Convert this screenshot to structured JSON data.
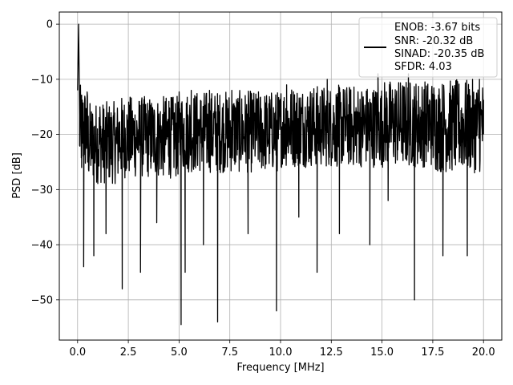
{
  "chart_data": {
    "type": "line",
    "title": "",
    "xlabel": "Frequency [MHz]",
    "ylabel": "PSD [dB]",
    "xlim": [
      -0.9,
      20.9
    ],
    "ylim": [
      -57.3,
      2.2
    ],
    "xticks": [
      0.0,
      2.5,
      5.0,
      7.5,
      10.0,
      12.5,
      15.0,
      17.5,
      20.0
    ],
    "xtick_labels": [
      "0.0",
      "2.5",
      "5.0",
      "7.5",
      "10.0",
      "12.5",
      "15.0",
      "17.5",
      "20.0"
    ],
    "yticks": [
      0,
      -10,
      -20,
      -30,
      -40,
      -50
    ],
    "ytick_labels": [
      "0",
      "−10",
      "−20",
      "−30",
      "−40",
      "−50"
    ],
    "grid": true,
    "legend_position": "top-right",
    "legend": [
      "ENOB: -3.67 bits",
      "SNR: -20.32 dB",
      "SINAD: -20.35 dB",
      "SFDR: 4.03"
    ],
    "series": [
      {
        "color": "#000000",
        "x": [
          0.0,
          0.05,
          0.1,
          0.2,
          0.3,
          0.5,
          0.8,
          1.1,
          1.4,
          2.2,
          2.6,
          3.1,
          3.6,
          3.9,
          4.5,
          5.1,
          5.3,
          5.6,
          6.2,
          6.5,
          6.9,
          7.6,
          8.4,
          9.0,
          9.8,
          10.3,
          10.9,
          11.2,
          11.8,
          12.3,
          12.9,
          13.7,
          14.4,
          14.8,
          15.3,
          16.3,
          16.6,
          17.5,
          18.0,
          18.6,
          19.2,
          19.8,
          20.0
        ],
        "y": [
          -12,
          0,
          -22,
          -26,
          -44,
          -25,
          -42,
          -15,
          -38,
          -48,
          -20,
          -45,
          -20,
          -36,
          -14,
          -54.5,
          -45,
          -12,
          -40,
          -12,
          -54,
          -12,
          -38,
          -22,
          -52,
          -11,
          -35,
          -18,
          -45,
          -10,
          -38,
          -22,
          -40,
          -9,
          -32,
          -9,
          -50,
          -20,
          -42,
          -12,
          -42,
          -10,
          -20
        ],
        "noise_band": {
          "segments": [
            {
              "x": [
                0.1,
                0.5
              ],
              "upper": -11,
              "lower": -27
            },
            {
              "x": [
                0.5,
                2.0
              ],
              "upper": -14,
              "lower": -29
            },
            {
              "x": [
                2.0,
                5.0
              ],
              "upper": -13,
              "lower": -28
            },
            {
              "x": [
                5.0,
                7.5
              ],
              "upper": -12,
              "lower": -27
            },
            {
              "x": [
                7.5,
                10.0
              ],
              "upper": -12,
              "lower": -27
            },
            {
              "x": [
                10.0,
                12.5
              ],
              "upper": -11,
              "lower": -26
            },
            {
              "x": [
                12.5,
                15.0
              ],
              "upper": -11,
              "lower": -26
            },
            {
              "x": [
                15.0,
                17.5
              ],
              "upper": -10,
              "lower": -26
            },
            {
              "x": [
                17.5,
                20.0
              ],
              "upper": -10,
              "lower": -27
            }
          ]
        }
      }
    ]
  }
}
